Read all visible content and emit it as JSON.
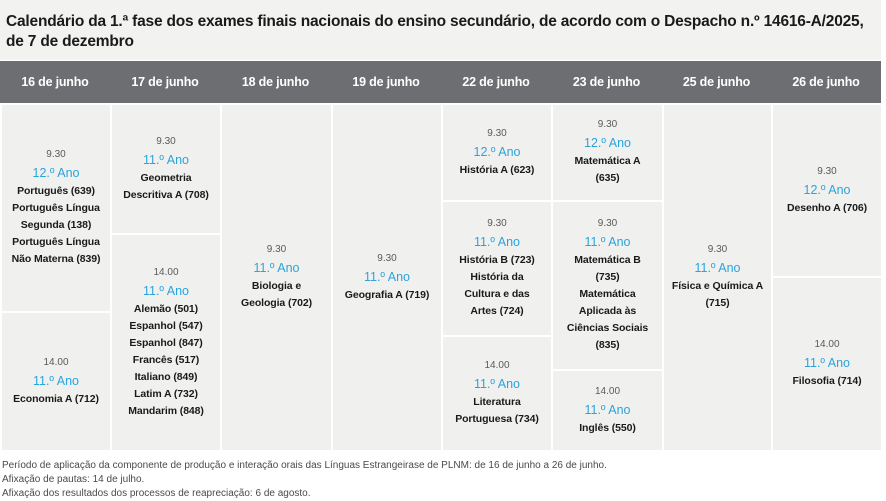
{
  "title": "Calendário da 1.ª fase dos exames finais nacionais do ensino secundário, de acordo com o Despacho n.º 14616-A/2025, de 7 de dezembro",
  "colors": {
    "header_bg": "#6d6e71",
    "cell_bg": "#f0f0ef",
    "year_accent": "#2aa4dc"
  },
  "columns": [
    {
      "date": "16 de junho",
      "slots": [
        {
          "time": "9.30",
          "year": "12.º Ano",
          "exams": [
            "Português (639)",
            "Português Língua",
            "Segunda (138)",
            "Português Língua",
            "Não Materna (839)"
          ]
        },
        {
          "time": "14.00",
          "year": "11.º Ano",
          "exams": [
            "Economia A (712)"
          ]
        }
      ]
    },
    {
      "date": "17 de junho",
      "slots": [
        {
          "time": "9.30",
          "year": "11.º Ano",
          "exams": [
            "Geometria",
            "Descritiva A (708)"
          ]
        },
        {
          "time": "14.00",
          "year": "11.º Ano",
          "exams": [
            "Alemão (501)",
            "Espanhol (547)",
            "Espanhol (847)",
            "Francês (517)",
            "Italiano (849)",
            "Latim A (732)",
            "Mandarim (848)"
          ]
        }
      ]
    },
    {
      "date": "18 de junho",
      "slots": [
        {
          "time": "9.30",
          "year": "11.º Ano",
          "exams": [
            "Biologia e",
            "Geologia (702)"
          ]
        }
      ]
    },
    {
      "date": "19 de junho",
      "slots": [
        {
          "time": "9.30",
          "year": "11.º Ano",
          "exams": [
            "Geografia A (719)"
          ]
        }
      ]
    },
    {
      "date": "22 de junho",
      "slots": [
        {
          "time": "9.30",
          "year": "12.º Ano",
          "exams": [
            "História A (623)"
          ]
        },
        {
          "time": "9.30",
          "year": "11.º Ano",
          "exams": [
            "História B (723)",
            "História da",
            "Cultura e das",
            "Artes (724)"
          ]
        },
        {
          "time": "14.00",
          "year": "11.º Ano",
          "exams": [
            "Literatura",
            "Portuguesa (734)"
          ]
        }
      ]
    },
    {
      "date": "23 de junho",
      "slots": [
        {
          "time": "9.30",
          "year": "12.º Ano",
          "exams": [
            "Matemática A",
            "(635)"
          ]
        },
        {
          "time": "9.30",
          "year": "11.º Ano",
          "exams": [
            "Matemática B",
            "(735)",
            "Matemática",
            "Aplicada às",
            "Ciências Sociais",
            "(835)"
          ]
        },
        {
          "time": "14.00",
          "year": "11.º Ano",
          "exams": [
            "Inglês (550)"
          ]
        }
      ]
    },
    {
      "date": "25 de junho",
      "slots": [
        {
          "time": "9.30",
          "year": "11.º Ano",
          "exams": [
            "Física e Química A",
            "(715)"
          ]
        }
      ]
    },
    {
      "date": "26 de junho",
      "slots": [
        {
          "time": "9.30",
          "year": "12.º Ano",
          "exams": [
            "Desenho A (706)"
          ]
        },
        {
          "time": "14.00",
          "year": "11.º Ano",
          "exams": [
            "Filosofia (714)"
          ]
        }
      ]
    }
  ],
  "notes": [
    "Período de aplicação da componente de produção e interação orais das Línguas Estrangeirase de PLNM: de 16 de junho a 26 de junho.",
    "Afixação de pautas: 14 de julho.",
    "Afixação dos resultados dos processos de reapreciação: 6 de agosto."
  ]
}
